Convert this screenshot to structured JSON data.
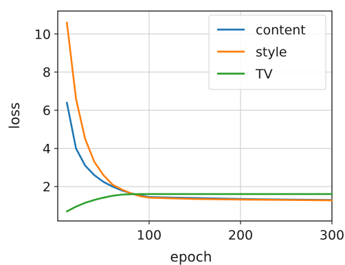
{
  "chart_data": {
    "type": "line",
    "title": "",
    "xlabel": "epoch",
    "ylabel": "loss",
    "xlim": [
      0,
      300
    ],
    "ylim": [
      0.2,
      11.2
    ],
    "xticks": [
      100,
      200,
      300
    ],
    "yticks": [
      2,
      4,
      6,
      8,
      10
    ],
    "grid": true,
    "legend_position": "top-right",
    "series": [
      {
        "name": "content",
        "color": "#1f77b4",
        "x": [
          10,
          20,
          30,
          40,
          50,
          60,
          70,
          80,
          90,
          100,
          150,
          200,
          250,
          300
        ],
        "y": [
          6.4,
          4.0,
          3.1,
          2.6,
          2.25,
          2.0,
          1.8,
          1.65,
          1.55,
          1.45,
          1.4,
          1.35,
          1.32,
          1.3
        ]
      },
      {
        "name": "style",
        "color": "#ff7f0e",
        "x": [
          10,
          20,
          30,
          40,
          50,
          60,
          70,
          80,
          90,
          100,
          150,
          200,
          250,
          300
        ],
        "y": [
          10.6,
          6.6,
          4.5,
          3.3,
          2.6,
          2.1,
          1.85,
          1.65,
          1.5,
          1.42,
          1.35,
          1.32,
          1.3,
          1.28
        ]
      },
      {
        "name": "TV",
        "color": "#2ca02c",
        "x": [
          10,
          20,
          30,
          40,
          50,
          60,
          70,
          80,
          90,
          100,
          150,
          200,
          250,
          300
        ],
        "y": [
          0.7,
          0.95,
          1.15,
          1.3,
          1.42,
          1.52,
          1.58,
          1.6,
          1.61,
          1.61,
          1.61,
          1.61,
          1.61,
          1.61
        ]
      }
    ]
  }
}
